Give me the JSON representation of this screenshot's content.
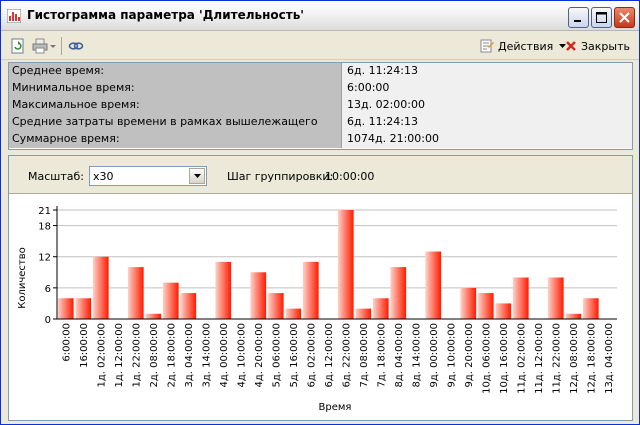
{
  "window": {
    "title": "Гистограмма параметра 'Длительность'"
  },
  "toolbar": {
    "actions_label": "Действия",
    "close_label": "Закрыть"
  },
  "stats": [
    {
      "label": "Среднее время:",
      "value": "6д. 11:24:13"
    },
    {
      "label": "Минимальное время:",
      "value": "6:00:00"
    },
    {
      "label": "Максимальное время:",
      "value": "13д. 02:00:00"
    },
    {
      "label": "Средние затраты времени в рамках вышележащего процесса:",
      "value": "6д. 11:24:13"
    },
    {
      "label": "Суммарное время:",
      "value": "1074д. 21:00:00"
    }
  ],
  "controls": {
    "scale_label": "Масштаб:",
    "scale_value": "x30",
    "group_step_label": "Шаг группировки:",
    "group_step_value": "10:00:00"
  },
  "colors": {
    "bar_light": "#ffd2c8",
    "bar_dark": "#ff1a00",
    "grid": "#c0c0c0"
  },
  "chart_data": {
    "type": "bar",
    "xlabel": "Время",
    "ylabel": "Количество",
    "ylim": [
      0,
      21
    ],
    "yticks": [
      0,
      6,
      12,
      18,
      21
    ],
    "categories": [
      "6:00:00",
      "16:00:00",
      "1д. 02:00:00",
      "1д. 12:00:00",
      "1д. 22:00:00",
      "2д. 08:00:00",
      "2д. 18:00:00",
      "3д. 04:00:00",
      "3д. 14:00:00",
      "4д. 00:00:00",
      "4д. 10:00:00",
      "4д. 20:00:00",
      "5д. 06:00:00",
      "5д. 16:00:00",
      "6д. 02:00:00",
      "6д. 12:00:00",
      "6д. 22:00:00",
      "7д. 08:00:00",
      "7д. 18:00:00",
      "8д. 04:00:00",
      "8д. 14:00:00",
      "9д. 00:00:00",
      "9д. 10:00:00",
      "9д. 20:00:00",
      "10д. 06:00:00",
      "10д. 16:00:00",
      "11д. 02:00:00",
      "11д. 12:00:00",
      "11д. 22:00:00",
      "12д. 08:00:00",
      "12д. 18:00:00",
      "13д. 04:00:00"
    ],
    "x_tick_labels": [
      "6:00:00",
      "16:00:00",
      "1д. 02:00:00",
      "1д. 12:00:00",
      "1д. 22:00:00",
      "2д. 08:00:00",
      "2д. 18:00:00",
      "3д. 04:00:00",
      "3д. 14:00:00",
      "4д. 00:00:00",
      "4д. 10:00:00",
      "4д. 20:00:00",
      "5д. 06:00:00",
      "5д. 16:00:00",
      "6д. 02:00:00",
      "6д. 12:00:00",
      "6д. 22:00:00",
      "7д. 08:00:00",
      "7д. 18:00:00",
      "8д. 04:00:00",
      "8д. 14:00:00",
      "9д. 00:00:00",
      "9д. 10:00:00",
      "9д. 20:00:00",
      "10д. 06:00:00",
      "10д. 16:00:00",
      "11д. 02:00:00",
      "11д. 12:00:00",
      "11д. 22:00:00",
      "12д. 08:00:00",
      "12д. 18:00:00",
      "13д. 04:00:00"
    ],
    "values": [
      4,
      4,
      12,
      0,
      10,
      1,
      7,
      5,
      0,
      11,
      0,
      9,
      5,
      2,
      11,
      0,
      21,
      2,
      4,
      10,
      0,
      13,
      0,
      6,
      5,
      3,
      8,
      0,
      8,
      1,
      4,
      0
    ]
  }
}
